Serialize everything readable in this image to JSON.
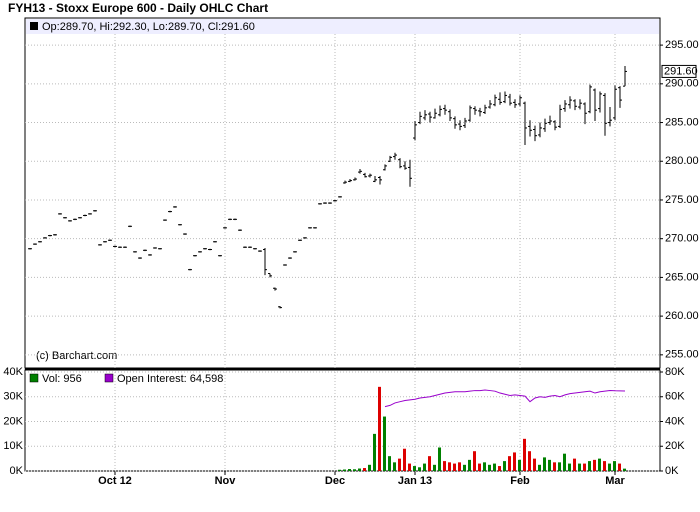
{
  "chart_data": [
    {
      "type": "ohlc",
      "title": "FYH13 - Stoxx Europe 600 - Daily OHLC Chart",
      "info_label": "Op:289.70, Hi:292.30, Lo:289.70, Cl:291.60",
      "credit": "(c) Barchart.com",
      "color": "#000000",
      "grid": true,
      "ylim": [
        253.3,
        298.5
      ],
      "yticks": [
        {
          "value": 255,
          "label": "255.00"
        },
        {
          "value": 260,
          "label": "260.00"
        },
        {
          "value": 265,
          "label": "265.00"
        },
        {
          "value": 270,
          "label": "270.00"
        },
        {
          "value": 275,
          "label": "275.00"
        },
        {
          "value": 280,
          "label": "280.00"
        },
        {
          "value": 285,
          "label": "285.00"
        },
        {
          "value": 290,
          "label": "290.00"
        },
        {
          "value": 295,
          "label": "295.00"
        }
      ],
      "last_label": {
        "value": 291.6,
        "label": "291.60"
      },
      "categories": [
        null,
        null,
        null,
        null,
        null,
        null,
        null,
        null,
        null,
        null,
        null,
        null,
        null,
        null,
        null,
        null,
        null,
        "Oct 12",
        null,
        null,
        null,
        null,
        null,
        null,
        null,
        null,
        null,
        null,
        null,
        null,
        null,
        null,
        null,
        null,
        null,
        null,
        null,
        null,
        null,
        "Nov",
        null,
        null,
        null,
        null,
        null,
        null,
        null,
        null,
        null,
        null,
        null,
        null,
        null,
        null,
        null,
        null,
        null,
        null,
        null,
        null,
        null,
        "Dec",
        null,
        null,
        null,
        null,
        null,
        null,
        null,
        null,
        null,
        null,
        null,
        null,
        null,
        null,
        null,
        "Jan 13",
        null,
        null,
        null,
        null,
        null,
        null,
        null,
        null,
        null,
        null,
        null,
        null,
        null,
        null,
        null,
        null,
        null,
        null,
        null,
        null,
        "Feb",
        null,
        null,
        null,
        null,
        null,
        null,
        null,
        null,
        null,
        null,
        null,
        null,
        null,
        null,
        null,
        null,
        null,
        null,
        "Mar",
        null,
        null
      ],
      "ohlc": [
        [
          268.7,
          268.8,
          268.6,
          268.7
        ],
        [
          269.3,
          269.4,
          269.2,
          269.3
        ],
        [
          269.6,
          269.7,
          269.5,
          269.6
        ],
        [
          270.1,
          270.2,
          270.0,
          270.1
        ],
        [
          270.4,
          270.5,
          270.3,
          270.4
        ],
        [
          270.5,
          270.6,
          270.4,
          270.5
        ],
        [
          273.2,
          273.3,
          273.1,
          273.2
        ],
        [
          272.7,
          272.8,
          272.6,
          272.7
        ],
        [
          272.3,
          272.4,
          272.2,
          272.3
        ],
        [
          272.5,
          272.6,
          272.4,
          272.5
        ],
        [
          272.7,
          272.8,
          272.6,
          272.7
        ],
        [
          273.0,
          273.1,
          272.9,
          273.0
        ],
        [
          273.2,
          273.3,
          273.1,
          273.2
        ],
        [
          273.6,
          273.7,
          273.5,
          273.6
        ],
        [
          269.2,
          269.3,
          269.1,
          269.2
        ],
        [
          269.6,
          269.7,
          269.5,
          269.6
        ],
        [
          269.8,
          269.9,
          269.7,
          269.8
        ],
        [
          269.0,
          269.1,
          268.9,
          269.0
        ],
        [
          268.9,
          269.0,
          268.8,
          268.9
        ],
        [
          268.9,
          269.0,
          268.8,
          268.9
        ],
        [
          271.6,
          271.7,
          271.5,
          271.6
        ],
        [
          268.3,
          268.4,
          268.2,
          268.3
        ],
        [
          267.5,
          267.6,
          267.4,
          267.5
        ],
        [
          268.5,
          268.6,
          268.4,
          268.5
        ],
        [
          267.9,
          268.0,
          267.8,
          267.9
        ],
        [
          268.8,
          268.9,
          268.7,
          268.8
        ],
        [
          268.7,
          268.8,
          268.6,
          268.7
        ],
        [
          272.4,
          272.5,
          272.3,
          272.4
        ],
        [
          273.5,
          273.6,
          273.4,
          273.5
        ],
        [
          274.1,
          274.2,
          274.0,
          274.1
        ],
        [
          271.8,
          271.9,
          271.7,
          271.8
        ],
        [
          270.6,
          270.7,
          270.5,
          270.6
        ],
        [
          266.0,
          266.1,
          265.9,
          266.0
        ],
        [
          267.8,
          267.9,
          267.7,
          267.8
        ],
        [
          268.3,
          268.4,
          268.2,
          268.3
        ],
        [
          268.7,
          268.8,
          268.6,
          268.7
        ],
        [
          268.6,
          268.7,
          268.5,
          268.6
        ],
        [
          269.6,
          269.7,
          269.5,
          269.6
        ],
        [
          267.8,
          267.9,
          267.7,
          267.8
        ],
        [
          271.4,
          271.5,
          271.3,
          271.4
        ],
        [
          272.5,
          272.6,
          272.4,
          272.5
        ],
        [
          272.5,
          272.6,
          272.4,
          272.5
        ],
        [
          271.1,
          271.2,
          271.0,
          271.1
        ],
        [
          268.9,
          269.0,
          268.8,
          268.9
        ],
        [
          268.9,
          269.0,
          268.8,
          268.9
        ],
        [
          268.7,
          268.8,
          268.6,
          268.7
        ],
        [
          268.4,
          268.5,
          268.3,
          268.4
        ],
        [
          268.6,
          268.8,
          265.3,
          266.0
        ],
        [
          265.5,
          265.5,
          265.0,
          265.2
        ],
        [
          263.6,
          263.7,
          263.3,
          263.5
        ],
        [
          261.2,
          261.3,
          261.0,
          261.1
        ],
        [
          266.6,
          266.7,
          266.5,
          266.6
        ],
        [
          267.5,
          267.6,
          267.4,
          267.5
        ],
        [
          268.3,
          268.4,
          268.2,
          268.3
        ],
        [
          269.8,
          269.9,
          269.7,
          269.8
        ],
        [
          270.1,
          270.2,
          270.0,
          270.1
        ],
        [
          271.4,
          271.5,
          271.3,
          271.4
        ],
        [
          271.4,
          271.5,
          271.3,
          271.4
        ],
        [
          274.5,
          274.6,
          274.4,
          274.5
        ],
        [
          274.6,
          274.7,
          274.5,
          274.6
        ],
        [
          274.6,
          274.7,
          274.5,
          274.6
        ],
        [
          274.9,
          275.0,
          274.8,
          274.9
        ],
        [
          275.4,
          275.5,
          275.3,
          275.4
        ],
        [
          277.2,
          277.5,
          277.1,
          277.3
        ],
        [
          277.4,
          277.7,
          277.3,
          277.5
        ],
        [
          277.6,
          277.9,
          277.5,
          277.7
        ],
        [
          278.6,
          279.0,
          278.4,
          278.7
        ],
        [
          278.3,
          278.5,
          277.9,
          278.0
        ],
        [
          278.1,
          278.4,
          277.9,
          278.2
        ],
        [
          277.4,
          278.1,
          277.3,
          277.6
        ],
        [
          277.9,
          278.1,
          277.0,
          277.6
        ],
        [
          278.9,
          279.6,
          278.8,
          279.4
        ],
        [
          280.0,
          280.7,
          279.9,
          280.5
        ],
        [
          280.6,
          281.1,
          280.2,
          280.8
        ],
        [
          280.2,
          280.4,
          279.1,
          279.3
        ],
        [
          279.4,
          280.0,
          278.9,
          279.1
        ],
        [
          279.2,
          280.2,
          276.7,
          277.8
        ],
        [
          283.0,
          285.2,
          282.7,
          284.7
        ],
        [
          285.0,
          286.4,
          284.8,
          285.8
        ],
        [
          285.6,
          286.6,
          285.3,
          286.0
        ],
        [
          286.1,
          286.4,
          285.0,
          285.7
        ],
        [
          285.6,
          286.8,
          285.5,
          286.2
        ],
        [
          286.0,
          287.2,
          285.8,
          286.7
        ],
        [
          286.8,
          287.3,
          286.0,
          286.6
        ],
        [
          286.4,
          286.7,
          285.2,
          285.6
        ],
        [
          285.5,
          285.8,
          284.2,
          284.7
        ],
        [
          284.8,
          285.3,
          284.0,
          284.5
        ],
        [
          284.6,
          285.6,
          284.3,
          285.2
        ],
        [
          285.3,
          287.2,
          285.1,
          286.9
        ],
        [
          286.8,
          287.1,
          286.0,
          286.6
        ],
        [
          286.5,
          286.9,
          285.8,
          286.4
        ],
        [
          286.3,
          287.3,
          286.1,
          286.9
        ],
        [
          287.0,
          287.9,
          286.8,
          287.4
        ],
        [
          287.3,
          288.6,
          287.1,
          288.2
        ],
        [
          288.0,
          288.9,
          287.3,
          287.6
        ],
        [
          287.7,
          289.0,
          287.5,
          288.5
        ],
        [
          288.3,
          288.7,
          287.2,
          287.5
        ],
        [
          287.6,
          288.0,
          286.9,
          287.3
        ],
        [
          287.4,
          288.5,
          287.1,
          288.2
        ],
        [
          287.5,
          287.7,
          282.1,
          284.3
        ],
        [
          284.5,
          285.3,
          283.2,
          284.0
        ],
        [
          284.1,
          284.6,
          282.6,
          283.3
        ],
        [
          283.4,
          285.0,
          283.1,
          284.3
        ],
        [
          284.2,
          285.5,
          283.8,
          284.9
        ],
        [
          285.0,
          285.9,
          284.7,
          285.2
        ],
        [
          285.1,
          285.3,
          284.0,
          284.4
        ],
        [
          284.5,
          287.3,
          284.3,
          286.7
        ],
        [
          286.8,
          287.9,
          286.4,
          287.4
        ],
        [
          287.3,
          288.4,
          286.8,
          287.9
        ],
        [
          287.8,
          288.0,
          286.6,
          287.1
        ],
        [
          287.0,
          288.0,
          286.7,
          287.5
        ],
        [
          287.4,
          287.6,
          284.8,
          286.2
        ],
        [
          286.4,
          289.9,
          286.2,
          289.6
        ],
        [
          289.2,
          289.4,
          285.2,
          286.6
        ],
        [
          286.8,
          289.0,
          286.3,
          288.7
        ],
        [
          288.5,
          288.8,
          283.3,
          284.9
        ],
        [
          285.0,
          287.0,
          284.5,
          285.3
        ],
        [
          285.6,
          289.8,
          285.3,
          289.3
        ],
        [
          289.5,
          289.7,
          286.9,
          287.9
        ],
        [
          289.7,
          292.3,
          289.7,
          291.6
        ]
      ]
    },
    {
      "type": "volume",
      "grid": true,
      "ylim": [
        0,
        40000
      ],
      "yticks": [
        {
          "value": 0,
          "label": "0K"
        },
        {
          "value": 10000,
          "label": "10K"
        },
        {
          "value": 20000,
          "label": "20K"
        },
        {
          "value": 30000,
          "label": "30K"
        },
        {
          "value": 40000,
          "label": "40K"
        }
      ],
      "y2lim": [
        0,
        80000
      ],
      "y2ticks": [
        {
          "value": 0,
          "label": "0K"
        },
        {
          "value": 20000,
          "label": "20K"
        },
        {
          "value": 40000,
          "label": "40K"
        },
        {
          "value": 60000,
          "label": "60K"
        },
        {
          "value": 80000,
          "label": "80K"
        }
      ],
      "series": [
        {
          "name": "Vol: 956",
          "color": "#008000",
          "up_color": "#008000",
          "down_color": "#dd0000",
          "values": [
            null,
            null,
            null,
            null,
            null,
            null,
            null,
            null,
            null,
            null,
            null,
            null,
            null,
            null,
            null,
            null,
            null,
            null,
            null,
            null,
            null,
            null,
            null,
            null,
            null,
            null,
            null,
            null,
            null,
            null,
            null,
            null,
            null,
            null,
            null,
            null,
            null,
            null,
            null,
            null,
            null,
            null,
            null,
            null,
            null,
            null,
            null,
            null,
            null,
            null,
            null,
            null,
            null,
            null,
            null,
            null,
            null,
            null,
            null,
            null,
            null,
            null,
            500,
            600,
            800,
            700,
            1000,
            1200,
            2500,
            15000,
            34000,
            22000,
            6000,
            3500,
            5000,
            9000,
            3000,
            2000,
            1500,
            3000,
            6000,
            2500,
            9500,
            4000,
            3500,
            3000,
            3500,
            2500,
            4500,
            8000,
            3000,
            3500,
            2500,
            3000,
            2000,
            4000,
            6000,
            7500,
            4500,
            13000,
            8000,
            5000,
            2500,
            5500,
            4500,
            3500,
            3500,
            7000,
            3000,
            5000,
            3000,
            3000,
            4000,
            4500,
            5000,
            4000,
            3000,
            4000,
            3000,
            956
          ]
        },
        {
          "name": "Open Interest: 64,598",
          "color": "#9900cc",
          "axis": "y2",
          "values": [
            null,
            null,
            null,
            null,
            null,
            null,
            null,
            null,
            null,
            null,
            null,
            null,
            null,
            null,
            null,
            null,
            null,
            null,
            null,
            null,
            null,
            null,
            null,
            null,
            null,
            null,
            null,
            null,
            null,
            null,
            null,
            null,
            null,
            null,
            null,
            null,
            null,
            null,
            null,
            null,
            null,
            null,
            null,
            null,
            null,
            null,
            null,
            null,
            null,
            null,
            null,
            null,
            null,
            null,
            null,
            null,
            null,
            null,
            null,
            null,
            null,
            null,
            null,
            null,
            null,
            null,
            null,
            null,
            null,
            null,
            null,
            52000,
            53000,
            55000,
            56000,
            57000,
            57500,
            58000,
            59000,
            59500,
            60000,
            61000,
            62000,
            63000,
            63500,
            64000,
            64000,
            64000,
            64500,
            65000,
            65000,
            65500,
            65000,
            64500,
            63000,
            62000,
            61000,
            61500,
            61000,
            60500,
            56000,
            59000,
            60000,
            59500,
            60500,
            61000,
            60000,
            61500,
            62500,
            63000,
            63500,
            64000,
            64500,
            63000,
            64000,
            64500,
            65000,
            64800,
            64700,
            64598
          ]
        }
      ]
    }
  ]
}
